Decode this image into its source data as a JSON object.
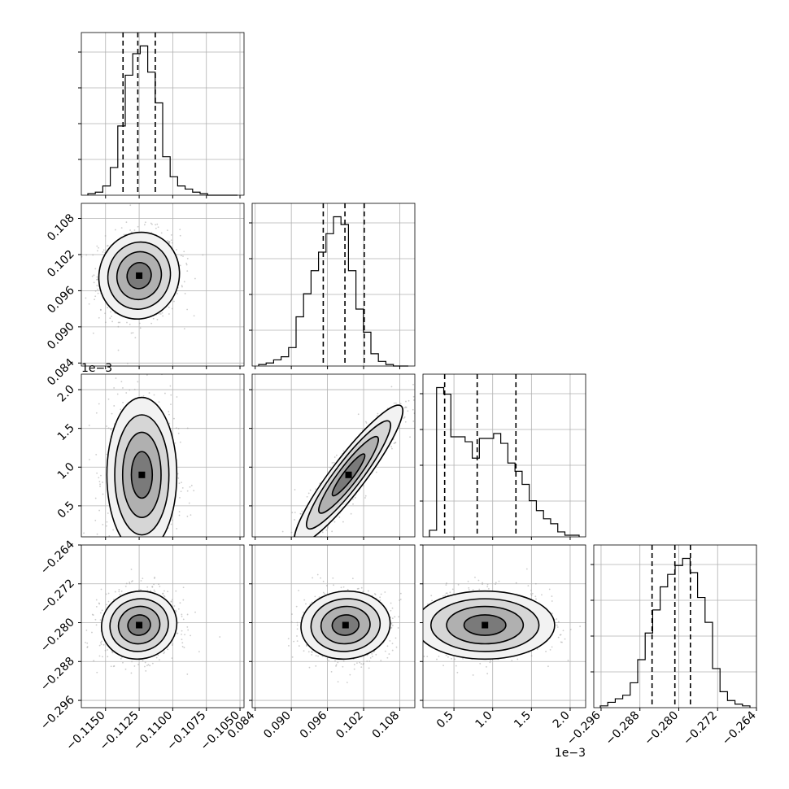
{
  "chart_data": {
    "type": "corner",
    "params": [
      {
        "range": [
          -0.1168,
          -0.1047
        ],
        "ticks": [
          {
            "v": -0.115,
            "label": "−0.1150"
          },
          {
            "v": -0.1125,
            "label": "−0.1125"
          },
          {
            "v": -0.11,
            "label": "−0.1100"
          },
          {
            "v": -0.1075,
            "label": "−0.1075"
          },
          {
            "v": -0.105,
            "label": "−0.1050"
          }
        ],
        "offset": "",
        "quantiles": [
          -0.1137,
          -0.1126,
          -0.1113
        ],
        "hist": [
          1,
          2,
          6,
          18,
          45,
          78,
          92,
          97,
          80,
          60,
          25,
          12,
          6,
          4,
          2,
          1,
          0,
          0,
          0,
          0
        ]
      },
      {
        "range": [
          0.0835,
          0.1105
        ],
        "ticks": [
          {
            "v": 0.084,
            "label": "0.084"
          },
          {
            "v": 0.09,
            "label": "0.090"
          },
          {
            "v": 0.096,
            "label": "0.096"
          },
          {
            "v": 0.102,
            "label": "0.102"
          },
          {
            "v": 0.108,
            "label": "0.108"
          }
        ],
        "offset": "",
        "quantiles": [
          0.0953,
          0.0989,
          0.1021
        ],
        "hist": [
          1,
          2,
          4,
          6,
          12,
          32,
          47,
          62,
          74,
          86,
          97,
          92,
          62,
          37,
          22,
          8,
          3,
          1,
          0,
          0
        ]
      },
      {
        "range": [
          0.1,
          2.2
        ],
        "ticks": [
          {
            "v": 0.5,
            "label": "0.5"
          },
          {
            "v": 1.0,
            "label": "1.0"
          },
          {
            "v": 1.5,
            "label": "1.5"
          },
          {
            "v": 2.0,
            "label": "2.0"
          }
        ],
        "offset": "1e−3",
        "quantiles": [
          0.38,
          0.8,
          1.3
        ],
        "hist": [
          4,
          91,
          87,
          61,
          61,
          58,
          48,
          60,
          60,
          63,
          57,
          45,
          40,
          32,
          22,
          16,
          11,
          8,
          3,
          1,
          1
        ]
      },
      {
        "range": [
          -0.2975,
          -0.264
        ],
        "ticks": [
          {
            "v": -0.296,
            "label": "−0.296"
          },
          {
            "v": -0.288,
            "label": "−0.288"
          },
          {
            "v": -0.28,
            "label": "−0.280"
          },
          {
            "v": -0.272,
            "label": "−0.272"
          },
          {
            "v": -0.264,
            "label": "−0.264"
          }
        ],
        "offset": "",
        "quantiles": [
          -0.2855,
          -0.2808,
          -0.2776
        ],
        "hist": [
          1,
          3,
          5,
          7,
          14,
          27,
          42,
          55,
          68,
          75,
          80,
          84,
          76,
          62,
          48,
          22,
          9,
          4,
          2,
          1
        ]
      }
    ],
    "pairs": [
      {
        "row": 1,
        "col": 0,
        "mx": -0.1125,
        "my": 0.0985,
        "sx": 0.0015,
        "sy": 0.0036,
        "rho": 0.05
      },
      {
        "row": 2,
        "col": 0,
        "mx": -0.1123,
        "my": 0.9,
        "sx": 0.0013,
        "sy": 0.5,
        "rho": 0.0
      },
      {
        "row": 2,
        "col": 1,
        "mx": 0.0995,
        "my": 0.9,
        "sx": 0.0045,
        "sy": 0.45,
        "rho": 0.92
      },
      {
        "row": 3,
        "col": 0,
        "mx": -0.1125,
        "my": -0.2805,
        "sx": 0.0014,
        "sy": 0.0035,
        "rho": 0.05
      },
      {
        "row": 3,
        "col": 1,
        "mx": 0.099,
        "my": -0.2805,
        "sx": 0.0037,
        "sy": 0.0035,
        "rho": 0.05
      },
      {
        "row": 3,
        "col": 2,
        "mx": 0.9,
        "my": -0.2805,
        "sx": 0.45,
        "sy": 0.0035,
        "rho": 0.0
      }
    ],
    "grid": true,
    "title": "",
    "xlabel": "",
    "ylabel": ""
  }
}
